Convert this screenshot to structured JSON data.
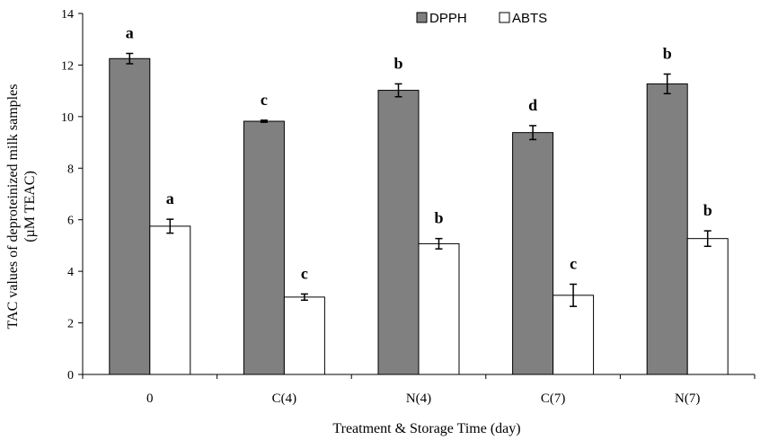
{
  "chart_data": {
    "type": "bar",
    "categories": [
      "0",
      "C(4)",
      "N(4)",
      "C(7)",
      "N(7)"
    ],
    "series": [
      {
        "name": "DPPH",
        "color": "#808080",
        "values": [
          12.25,
          9.82,
          11.02,
          9.38,
          11.27
        ],
        "errors": [
          0.2,
          0.04,
          0.25,
          0.27,
          0.38
        ],
        "letters": [
          "a",
          "c",
          "b",
          "d",
          "b"
        ]
      },
      {
        "name": "ABTS",
        "color": "#ffffff",
        "values": [
          5.75,
          3.0,
          5.07,
          3.07,
          5.27
        ],
        "errors": [
          0.27,
          0.12,
          0.2,
          0.43,
          0.3
        ],
        "letters": [
          "a",
          "c",
          "b",
          "c",
          "b"
        ]
      }
    ],
    "xlabel": "Treatment & Storage Time (day)",
    "ylabel_line1": "TAC values of deproteinized milk samples",
    "ylabel_line2": "(µM TEAC)",
    "ylim": [
      0,
      14
    ],
    "yticks": [
      0,
      2,
      4,
      6,
      8,
      10,
      12,
      14
    ],
    "legend_position": "top-center",
    "grid": false
  }
}
